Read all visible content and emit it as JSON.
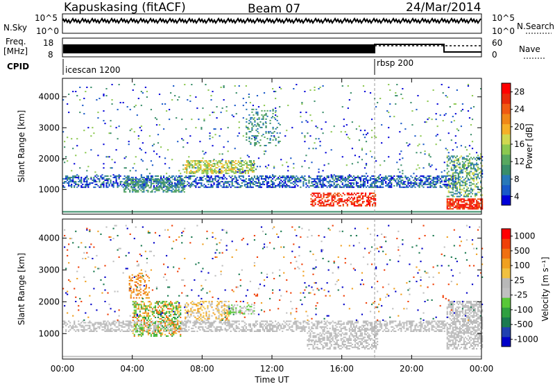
{
  "header": {
    "station": "Kapuskasing (fitACF)",
    "beam": "Beam 07",
    "date": "24/Mar/2014"
  },
  "top_panel": {
    "left_label": "N.Sky",
    "right_label": "N.Search",
    "ticks_left": [
      "10^5",
      "10^0"
    ],
    "ticks_right": [
      "10^5",
      "10^0"
    ]
  },
  "freq_panel": {
    "left_label_1": "Freq.",
    "left_label_2": "[MHz]",
    "right_label": "Nave",
    "ticks_left": [
      "18",
      "8"
    ],
    "ticks_right": [
      "60",
      "0"
    ]
  },
  "cpid": {
    "label": "CPID",
    "modes": [
      "icescan 1200",
      "rbsp 200"
    ]
  },
  "chart_data": [
    {
      "type": "heatmap",
      "panel": "power",
      "ylabel": "Slant Range [km]",
      "xlabel": "",
      "xlim": [
        "00:00",
        "24:00"
      ],
      "ylim": [
        200,
        4600
      ],
      "y_ticks": [
        "1000",
        "2000",
        "3000",
        "4000"
      ],
      "colorbar_label": "Power [dB]",
      "colorbar_ticks": [
        "28",
        "24",
        "20",
        "16",
        "12",
        "8",
        "4"
      ],
      "colorscale": [
        "#0000d8",
        "#1858c8",
        "#2878b8",
        "#3a8e6a",
        "#58a860",
        "#8cc850",
        "#d0d850",
        "#f5b028",
        "#f08818",
        "#f05a12",
        "#e82a0a",
        "#ff0000"
      ]
    },
    {
      "type": "heatmap",
      "panel": "velocity",
      "ylabel": "Slant Range [km]",
      "xlabel": "Time UT",
      "xlim": [
        "00:00",
        "24:00"
      ],
      "ylim": [
        200,
        4600
      ],
      "y_ticks": [
        "1000",
        "2000",
        "3000",
        "4000"
      ],
      "x_ticks": [
        "00:00",
        "04:00",
        "08:00",
        "12:00",
        "16:00",
        "20:00",
        "00:00"
      ],
      "colorbar_label": "Velocity [m s⁻¹]",
      "colorbar_ticks": [
        "1000",
        "500",
        "100",
        "25",
        "-25",
        "-100",
        "-500",
        "-1000"
      ],
      "colorscale": [
        "#0000c8",
        "#2040b0",
        "#1a7a50",
        "#30a040",
        "#58c838",
        "#c0c0c0",
        "#b8b8b8",
        "#f0c040",
        "#f0a020",
        "#f07010",
        "#f04008",
        "#ff0000"
      ]
    }
  ]
}
